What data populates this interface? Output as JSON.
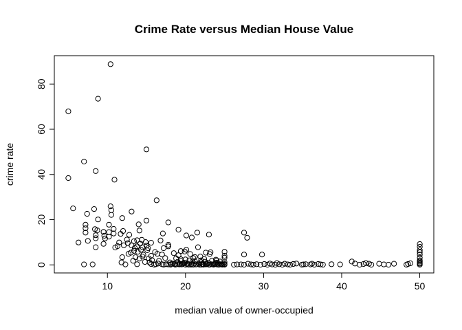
{
  "chart_data": {
    "type": "scatter",
    "title": "Crime Rate versus Median House Value",
    "xlabel": "median value of owner-occupied",
    "ylabel": "crime rate",
    "xlim": [
      3.2,
      51.8
    ],
    "ylim": [
      -3.56,
      92.54
    ],
    "xticks": [
      10,
      20,
      30,
      40,
      50
    ],
    "yticks": [
      0,
      20,
      40,
      60,
      80
    ],
    "grid": false,
    "legend": "none",
    "points": [
      [
        5.0,
        67.9
      ],
      [
        5.0,
        38.4
      ],
      [
        5.6,
        25.0
      ],
      [
        6.3,
        9.9
      ],
      [
        7.0,
        45.7
      ],
      [
        7.0,
        0.2
      ],
      [
        7.2,
        14.3
      ],
      [
        7.2,
        16.2
      ],
      [
        7.2,
        17.8
      ],
      [
        7.4,
        22.6
      ],
      [
        7.5,
        10.6
      ],
      [
        8.1,
        0.2
      ],
      [
        8.3,
        24.7
      ],
      [
        8.4,
        15.8
      ],
      [
        8.5,
        41.5
      ],
      [
        8.5,
        13.1
      ],
      [
        8.5,
        11.8
      ],
      [
        8.5,
        7.8
      ],
      [
        8.7,
        15.3
      ],
      [
        8.8,
        73.5
      ],
      [
        8.8,
        20.1
      ],
      [
        9.5,
        14.6
      ],
      [
        9.5,
        9.3
      ],
      [
        9.6,
        12.9
      ],
      [
        9.7,
        11.7
      ],
      [
        10.2,
        14.5
      ],
      [
        10.2,
        12.5
      ],
      [
        10.2,
        17.8
      ],
      [
        10.4,
        88.8
      ],
      [
        10.4,
        25.9
      ],
      [
        10.5,
        22.1
      ],
      [
        10.5,
        24.2
      ],
      [
        10.8,
        15.9
      ],
      [
        10.8,
        13.9
      ],
      [
        10.9,
        37.7
      ],
      [
        11.0,
        7.7
      ],
      [
        11.3,
        8.3
      ],
      [
        11.5,
        9.9
      ],
      [
        11.7,
        13.7
      ],
      [
        11.8,
        1.1
      ],
      [
        11.9,
        20.7
      ],
      [
        11.9,
        3.4
      ],
      [
        12.0,
        15.0
      ],
      [
        12.1,
        8.7
      ],
      [
        12.3,
        0.2
      ],
      [
        12.5,
        11.2
      ],
      [
        12.6,
        9.6
      ],
      [
        12.7,
        4.9
      ],
      [
        12.8,
        13.3
      ],
      [
        13.0,
        5.4
      ],
      [
        13.1,
        23.6
      ],
      [
        13.1,
        8.6
      ],
      [
        13.3,
        1.8
      ],
      [
        13.4,
        10.5
      ],
      [
        13.4,
        6.2
      ],
      [
        13.5,
        7.5
      ],
      [
        13.6,
        3.4
      ],
      [
        13.8,
        8.2
      ],
      [
        13.8,
        10.9
      ],
      [
        13.8,
        0.3
      ],
      [
        13.9,
        5.8
      ],
      [
        14.0,
        17.9
      ],
      [
        14.1,
        15.2
      ],
      [
        14.1,
        2.8
      ],
      [
        14.2,
        9.4
      ],
      [
        14.3,
        6.7
      ],
      [
        14.4,
        11.1
      ],
      [
        14.5,
        3.7
      ],
      [
        14.5,
        7.8
      ],
      [
        14.6,
        4.5
      ],
      [
        14.8,
        1.3
      ],
      [
        14.9,
        10.1
      ],
      [
        15.0,
        51.1
      ],
      [
        15.0,
        19.6
      ],
      [
        15.0,
        8.5
      ],
      [
        15.1,
        6.5
      ],
      [
        15.2,
        7.4
      ],
      [
        15.3,
        2.9
      ],
      [
        15.4,
        1.1
      ],
      [
        15.6,
        9.8
      ],
      [
        15.6,
        0.4
      ],
      [
        15.7,
        2.1
      ],
      [
        15.6,
        4.0
      ],
      [
        16.1,
        5.7
      ],
      [
        16.2,
        0.3
      ],
      [
        16.3,
        28.6
      ],
      [
        16.4,
        4.9
      ],
      [
        16.5,
        0.6
      ],
      [
        16.6,
        1.8
      ],
      [
        16.8,
        10.8
      ],
      [
        17.0,
        4.6
      ],
      [
        17.1,
        13.9
      ],
      [
        17.2,
        7.4
      ],
      [
        17.2,
        0.1
      ],
      [
        17.4,
        3.0
      ],
      [
        17.5,
        0.3
      ],
      [
        17.8,
        18.8
      ],
      [
        17.8,
        8.2
      ],
      [
        17.8,
        8.9
      ],
      [
        17.8,
        0.2
      ],
      [
        18.0,
        1.1
      ],
      [
        18.2,
        0.4
      ],
      [
        18.4,
        0.6
      ],
      [
        18.5,
        5.2
      ],
      [
        18.7,
        0.1
      ],
      [
        18.9,
        0.3
      ],
      [
        19.0,
        1.4
      ],
      [
        19.1,
        15.6
      ],
      [
        19.1,
        4.3
      ],
      [
        19.3,
        0.4
      ],
      [
        19.4,
        6.1
      ],
      [
        19.4,
        2.5
      ],
      [
        19.5,
        0.2
      ],
      [
        19.6,
        0.3
      ],
      [
        19.8,
        1.0
      ],
      [
        19.9,
        5.9
      ],
      [
        20.0,
        0.1
      ],
      [
        20.1,
        6.7
      ],
      [
        20.1,
        13.0
      ],
      [
        20.3,
        0.5
      ],
      [
        20.4,
        0.1
      ],
      [
        20.5,
        2.0
      ],
      [
        20.6,
        4.8
      ],
      [
        20.8,
        0.3
      ],
      [
        20.8,
        12.1
      ],
      [
        21.0,
        0.1
      ],
      [
        21.2,
        1.6
      ],
      [
        21.2,
        3.5
      ],
      [
        21.4,
        0.2
      ],
      [
        21.5,
        14.3
      ],
      [
        21.6,
        7.8
      ],
      [
        21.7,
        0.5
      ],
      [
        21.9,
        3.7
      ],
      [
        22.0,
        0.1
      ],
      [
        22.0,
        1.2
      ],
      [
        22.2,
        0.3
      ],
      [
        22.4,
        2.6
      ],
      [
        22.6,
        0.2
      ],
      [
        22.6,
        5.4
      ],
      [
        22.8,
        0.4
      ],
      [
        22.9,
        1.0
      ],
      [
        23.0,
        13.4
      ],
      [
        23.1,
        0.1
      ],
      [
        23.1,
        4.8
      ],
      [
        23.2,
        5.6
      ],
      [
        23.3,
        0.3
      ],
      [
        23.4,
        1.9
      ],
      [
        23.6,
        0.1
      ],
      [
        23.8,
        0.5
      ],
      [
        23.9,
        2.3
      ],
      [
        24.0,
        0.2
      ],
      [
        24.1,
        0.8
      ],
      [
        24.3,
        0.1
      ],
      [
        24.4,
        1.5
      ],
      [
        24.5,
        0.3
      ],
      [
        24.7,
        0.1
      ],
      [
        25.0,
        5.8
      ],
      [
        25.0,
        4.0
      ],
      [
        25.0,
        1.2
      ],
      [
        25.0,
        0.4
      ],
      [
        25.0,
        3.2
      ],
      [
        25.0,
        0.1
      ],
      [
        26.2,
        0.1
      ],
      [
        26.6,
        0.2
      ],
      [
        27.1,
        0.2
      ],
      [
        27.5,
        14.3
      ],
      [
        27.5,
        4.6
      ],
      [
        27.9,
        12.0
      ],
      [
        27.5,
        0.1
      ],
      [
        28.0,
        0.5
      ],
      [
        28.4,
        0.2
      ],
      [
        28.7,
        0.1
      ],
      [
        29.1,
        0.3
      ],
      [
        29.6,
        0.1
      ],
      [
        29.8,
        4.6
      ],
      [
        30.1,
        0.4
      ],
      [
        30.5,
        0.1
      ],
      [
        30.8,
        0.6
      ],
      [
        31.1,
        0.2
      ],
      [
        31.5,
        0.1
      ],
      [
        31.7,
        0.8
      ],
      [
        32.0,
        0.3
      ],
      [
        32.4,
        0.1
      ],
      [
        32.7,
        0.5
      ],
      [
        33.1,
        0.2
      ],
      [
        33.4,
        0.1
      ],
      [
        33.8,
        0.4
      ],
      [
        34.2,
        0.6
      ],
      [
        34.9,
        0.1
      ],
      [
        35.1,
        0.2
      ],
      [
        35.4,
        0.3
      ],
      [
        36.0,
        0.2
      ],
      [
        36.2,
        0.5
      ],
      [
        36.5,
        0.1
      ],
      [
        37.0,
        0.4
      ],
      [
        37.3,
        0.2
      ],
      [
        37.6,
        0.1
      ],
      [
        38.7,
        0.3
      ],
      [
        39.8,
        0.2
      ],
      [
        41.3,
        1.5
      ],
      [
        41.7,
        0.6
      ],
      [
        42.3,
        0.1
      ],
      [
        42.8,
        0.4
      ],
      [
        43.1,
        0.8
      ],
      [
        43.5,
        0.5
      ],
      [
        43.8,
        0.1
      ],
      [
        44.8,
        0.5
      ],
      [
        45.4,
        0.2
      ],
      [
        46.0,
        0.1
      ],
      [
        46.7,
        0.5
      ],
      [
        48.3,
        0.1
      ],
      [
        48.5,
        0.4
      ],
      [
        48.8,
        0.7
      ],
      [
        50.0,
        9.2
      ],
      [
        50.0,
        8.0
      ],
      [
        50.0,
        6.5
      ],
      [
        50.0,
        5.6
      ],
      [
        50.0,
        4.6
      ],
      [
        50.0,
        3.2
      ],
      [
        50.0,
        2.0
      ],
      [
        50.0,
        1.5
      ],
      [
        50.0,
        0.9
      ],
      [
        50.0,
        0.5
      ],
      [
        50.0,
        0.1
      ],
      [
        16.0,
        0.1
      ],
      [
        17.0,
        0.3
      ],
      [
        18.1,
        0.1
      ],
      [
        18.6,
        0.4
      ],
      [
        19.2,
        0.2
      ],
      [
        19.7,
        0.6
      ],
      [
        20.2,
        0.3
      ],
      [
        20.7,
        0.1
      ],
      [
        21.1,
        0.5
      ],
      [
        21.3,
        0.2
      ],
      [
        21.8,
        0.1
      ],
      [
        22.1,
        0.4
      ],
      [
        22.3,
        0.1
      ],
      [
        22.7,
        0.3
      ],
      [
        23.0,
        0.1
      ],
      [
        23.5,
        0.2
      ],
      [
        23.7,
        0.4
      ],
      [
        24.2,
        0.1
      ],
      [
        24.6,
        0.3
      ],
      [
        24.8,
        0.2
      ],
      [
        19.4,
        1.8
      ],
      [
        20.0,
        2.4
      ],
      [
        21.0,
        3.0
      ],
      [
        22.0,
        2.0
      ],
      [
        23.9,
        1.0
      ],
      [
        18.8,
        2.9
      ],
      [
        19.9,
        0.9
      ],
      [
        20.9,
        1.5
      ],
      [
        22.5,
        1.4
      ],
      [
        24.0,
        1.9
      ]
    ]
  }
}
